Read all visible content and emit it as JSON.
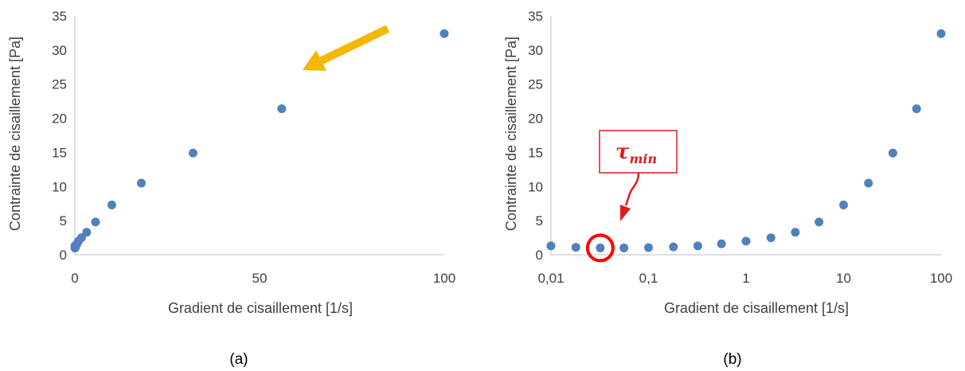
{
  "chart_data": [
    {
      "type": "scatter",
      "caption": "(a)",
      "xlabel": "Gradient de cisaillement [1/s]",
      "ylabel": "Contrainte de cisaillement [Pa]",
      "xscale": "linear",
      "xlim": [
        0,
        100
      ],
      "ylim": [
        0,
        35
      ],
      "xticks": [
        0,
        50,
        100
      ],
      "xtick_labels": [
        "0",
        "50",
        "100"
      ],
      "yticks": [
        0,
        5,
        10,
        15,
        20,
        25,
        30,
        35
      ],
      "ytick_labels": [
        "0",
        "5",
        "10",
        "15",
        "20",
        "25",
        "30",
        "35"
      ],
      "grid": false,
      "series": [
        {
          "color": "#4f81bd",
          "x": [
            0.01,
            0.018,
            0.032,
            0.056,
            0.1,
            0.18,
            0.32,
            0.56,
            1.0,
            1.8,
            3.2,
            5.6,
            10,
            18,
            32,
            56,
            100
          ],
          "y": [
            1.3,
            1.1,
            1.0,
            1.0,
            1.05,
            1.15,
            1.3,
            1.6,
            2.0,
            2.5,
            3.3,
            4.8,
            7.3,
            10.5,
            14.9,
            21.4,
            32.4
          ]
        }
      ],
      "annotation": {
        "type": "arrow",
        "color": "#f5b800"
      }
    },
    {
      "type": "scatter",
      "caption": "(b)",
      "xlabel": "Gradient de cisaillement [1/s]",
      "ylabel": "Contrainte de cisaillement [Pa]",
      "xscale": "log",
      "xlim": [
        0.01,
        100
      ],
      "ylim": [
        0,
        35
      ],
      "xticks": [
        0.01,
        0.1,
        1,
        10,
        100
      ],
      "xtick_labels": [
        "0,01",
        "0,1",
        "1",
        "10",
        "100"
      ],
      "yticks": [
        0,
        5,
        10,
        15,
        20,
        25,
        30,
        35
      ],
      "ytick_labels": [
        "0",
        "5",
        "10",
        "15",
        "20",
        "25",
        "30",
        "35"
      ],
      "grid": false,
      "series": [
        {
          "color": "#4f81bd",
          "x": [
            0.01,
            0.018,
            0.032,
            0.056,
            0.1,
            0.18,
            0.32,
            0.56,
            1.0,
            1.8,
            3.2,
            5.6,
            10,
            18,
            32,
            56,
            100
          ],
          "y": [
            1.3,
            1.1,
            1.0,
            1.0,
            1.05,
            1.15,
            1.3,
            1.6,
            2.0,
            2.5,
            3.3,
            4.8,
            7.3,
            10.5,
            14.9,
            21.4,
            32.4
          ]
        }
      ],
      "annotation": {
        "label": "τ",
        "label_subscript": "min",
        "label_color": "#e01a1a",
        "circle_x": 0.032,
        "circle_y": 1.0
      }
    }
  ]
}
